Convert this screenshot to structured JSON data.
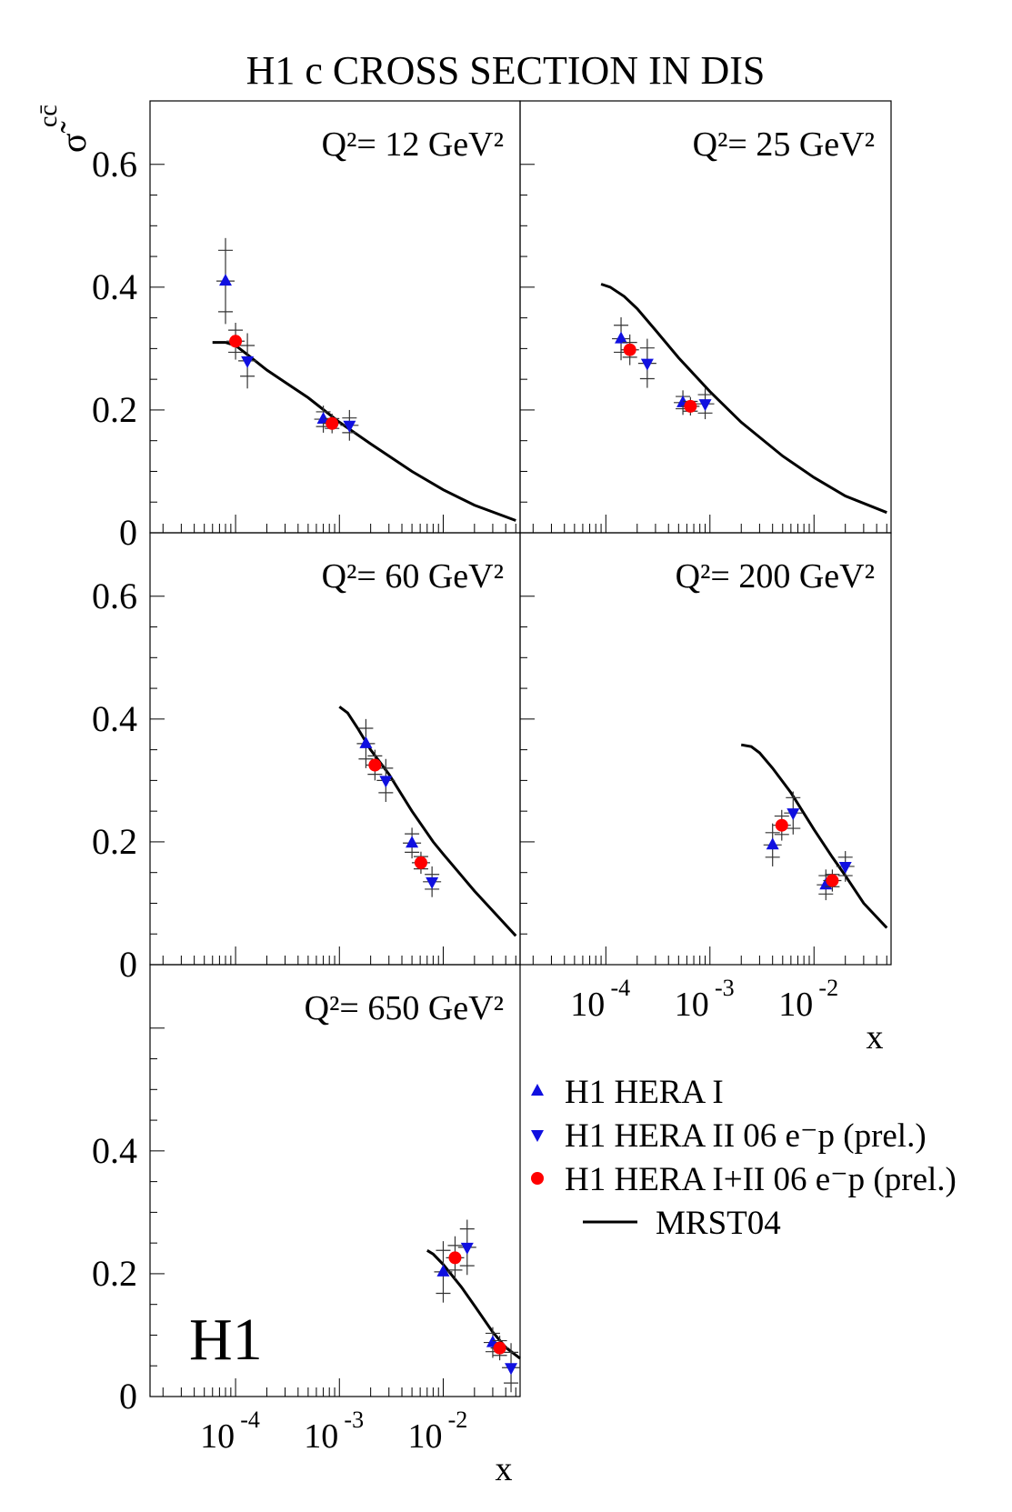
{
  "chart_data": {
    "type": "scatter",
    "title": "H1 c  CROSS SECTION IN DIS",
    "ylabel": "σ̃ cc̄",
    "xlabel": "x",
    "logo": "H1",
    "x_scale": "log",
    "xlim": [
      1.5e-05,
      0.055
    ],
    "ylim": [
      0,
      0.65
    ],
    "y_ticks": [
      0,
      0.2,
      0.4,
      0.6
    ],
    "y_tick_labels": [
      "0",
      "0.2",
      "0.4",
      "0.6"
    ],
    "x_tick_labels": [
      {
        "base": "10",
        "exp": "-4",
        "value": 0.0001
      },
      {
        "base": "10",
        "exp": "-3",
        "value": 0.001
      },
      {
        "base": "10",
        "exp": "-2",
        "value": 0.01
      }
    ],
    "legend": {
      "placement": "bottom-right",
      "entries": [
        {
          "series": "hera1",
          "marker": "triangle-up",
          "color": "#1010e0",
          "text": "H1 HERA I"
        },
        {
          "series": "hera2",
          "marker": "triangle-down",
          "color": "#1010e0",
          "text": "H1 HERA II 06 e⁻p (prel.)"
        },
        {
          "series": "comb",
          "marker": "circle",
          "color": "#ff0000",
          "text": "H1 HERA I+II 06 e⁻p (prel.)"
        },
        {
          "series": "mrst",
          "marker": "line",
          "color": "#000000",
          "text": "MRST04"
        }
      ]
    },
    "panels": [
      {
        "label": "Q²= 12 GeV²",
        "points": {
          "hera1": [
            {
              "x": 8e-05,
              "y": 0.41,
              "stat": 0.05,
              "tot": 0.07
            },
            {
              "x": 0.0007,
              "y": 0.185,
              "stat": 0.012,
              "tot": 0.022
            }
          ],
          "hera2": [
            {
              "x": 0.00013,
              "y": 0.28,
              "stat": 0.025,
              "tot": 0.045
            },
            {
              "x": 0.00125,
              "y": 0.175,
              "stat": 0.012,
              "tot": 0.025
            }
          ],
          "comb": [
            {
              "x": 0.0001,
              "y": 0.312,
              "stat": 0.018,
              "tot": 0.03
            },
            {
              "x": 0.00085,
              "y": 0.178,
              "stat": 0.008,
              "tot": 0.016
            }
          ]
        },
        "curve": [
          [
            6e-05,
            0.31
          ],
          [
            8e-05,
            0.31
          ],
          [
            0.0001,
            0.305
          ],
          [
            0.00013,
            0.29
          ],
          [
            0.0002,
            0.265
          ],
          [
            0.0003,
            0.245
          ],
          [
            0.0005,
            0.22
          ],
          [
            0.001,
            0.18
          ],
          [
            0.002,
            0.145
          ],
          [
            0.005,
            0.1
          ],
          [
            0.01,
            0.07
          ],
          [
            0.02,
            0.045
          ],
          [
            0.05,
            0.02
          ]
        ]
      },
      {
        "label": "Q²= 25 GeV²",
        "points": {
          "hera1": [
            {
              "x": 0.00014,
              "y": 0.316,
              "stat": 0.022,
              "tot": 0.035
            },
            {
              "x": 0.00055,
              "y": 0.212,
              "stat": 0.01,
              "tot": 0.02
            }
          ],
          "hera2": [
            {
              "x": 0.00025,
              "y": 0.276,
              "stat": 0.025,
              "tot": 0.04
            },
            {
              "x": 0.0009,
              "y": 0.21,
              "stat": 0.015,
              "tot": 0.025
            }
          ],
          "comb": [
            {
              "x": 0.00017,
              "y": 0.298,
              "stat": 0.012,
              "tot": 0.025
            },
            {
              "x": 0.00065,
              "y": 0.206,
              "stat": 0.008,
              "tot": 0.015
            }
          ]
        },
        "curve": [
          [
            9e-05,
            0.405
          ],
          [
            0.00011,
            0.4
          ],
          [
            0.00015,
            0.385
          ],
          [
            0.0002,
            0.365
          ],
          [
            0.0003,
            0.33
          ],
          [
            0.0005,
            0.285
          ],
          [
            0.001,
            0.23
          ],
          [
            0.002,
            0.18
          ],
          [
            0.005,
            0.125
          ],
          [
            0.01,
            0.09
          ],
          [
            0.02,
            0.06
          ],
          [
            0.05,
            0.033
          ]
        ]
      },
      {
        "label": "Q²= 60 GeV²",
        "points": {
          "hera1": [
            {
              "x": 0.0018,
              "y": 0.36,
              "stat": 0.025,
              "tot": 0.04
            },
            {
              "x": 0.005,
              "y": 0.198,
              "stat": 0.015,
              "tot": 0.025
            }
          ],
          "hera2": [
            {
              "x": 0.0028,
              "y": 0.3,
              "stat": 0.02,
              "tot": 0.035
            },
            {
              "x": 0.0078,
              "y": 0.135,
              "stat": 0.012,
              "tot": 0.025
            }
          ],
          "comb": [
            {
              "x": 0.0022,
              "y": 0.325,
              "stat": 0.015,
              "tot": 0.025
            },
            {
              "x": 0.0061,
              "y": 0.166,
              "stat": 0.01,
              "tot": 0.018
            }
          ]
        },
        "curve": [
          [
            0.001,
            0.42
          ],
          [
            0.0012,
            0.41
          ],
          [
            0.0015,
            0.385
          ],
          [
            0.002,
            0.35
          ],
          [
            0.003,
            0.31
          ],
          [
            0.005,
            0.25
          ],
          [
            0.008,
            0.2
          ],
          [
            0.01,
            0.18
          ],
          [
            0.02,
            0.12
          ],
          [
            0.05,
            0.047
          ]
        ]
      },
      {
        "label": "Q²= 200 GeV²",
        "points": {
          "hera1": [
            {
              "x": 0.004,
              "y": 0.195,
              "stat": 0.02,
              "tot": 0.035
            },
            {
              "x": 0.013,
              "y": 0.13,
              "stat": 0.015,
              "tot": 0.025
            }
          ],
          "hera2": [
            {
              "x": 0.0063,
              "y": 0.247,
              "stat": 0.025,
              "tot": 0.035
            },
            {
              "x": 0.02,
              "y": 0.16,
              "stat": 0.015,
              "tot": 0.025
            }
          ],
          "comb": [
            {
              "x": 0.0049,
              "y": 0.227,
              "stat": 0.015,
              "tot": 0.025
            },
            {
              "x": 0.015,
              "y": 0.137,
              "stat": 0.01,
              "tot": 0.018
            }
          ]
        },
        "curve": [
          [
            0.002,
            0.358
          ],
          [
            0.0025,
            0.355
          ],
          [
            0.003,
            0.345
          ],
          [
            0.004,
            0.32
          ],
          [
            0.006,
            0.28
          ],
          [
            0.01,
            0.22
          ],
          [
            0.015,
            0.175
          ],
          [
            0.02,
            0.145
          ],
          [
            0.03,
            0.1
          ],
          [
            0.05,
            0.06
          ]
        ]
      },
      {
        "label": "Q²= 650 GeV²",
        "points": {
          "hera1": [
            {
              "x": 0.01,
              "y": 0.203,
              "stat": 0.035,
              "tot": 0.05
            },
            {
              "x": 0.03,
              "y": 0.088,
              "stat": 0.015,
              "tot": 0.025
            }
          ],
          "hera2": [
            {
              "x": 0.017,
              "y": 0.243,
              "stat": 0.03,
              "tot": 0.045
            },
            {
              "x": 0.045,
              "y": 0.047,
              "stat": 0.025,
              "tot": 0.04
            }
          ],
          "comb": [
            {
              "x": 0.013,
              "y": 0.226,
              "stat": 0.02,
              "tot": 0.035
            },
            {
              "x": 0.035,
              "y": 0.079,
              "stat": 0.012,
              "tot": 0.02
            }
          ]
        },
        "curve": [
          [
            0.007,
            0.238
          ],
          [
            0.008,
            0.232
          ],
          [
            0.01,
            0.215
          ],
          [
            0.015,
            0.178
          ],
          [
            0.02,
            0.148
          ],
          [
            0.03,
            0.105
          ],
          [
            0.04,
            0.08
          ],
          [
            0.055,
            0.062
          ]
        ]
      }
    ]
  }
}
